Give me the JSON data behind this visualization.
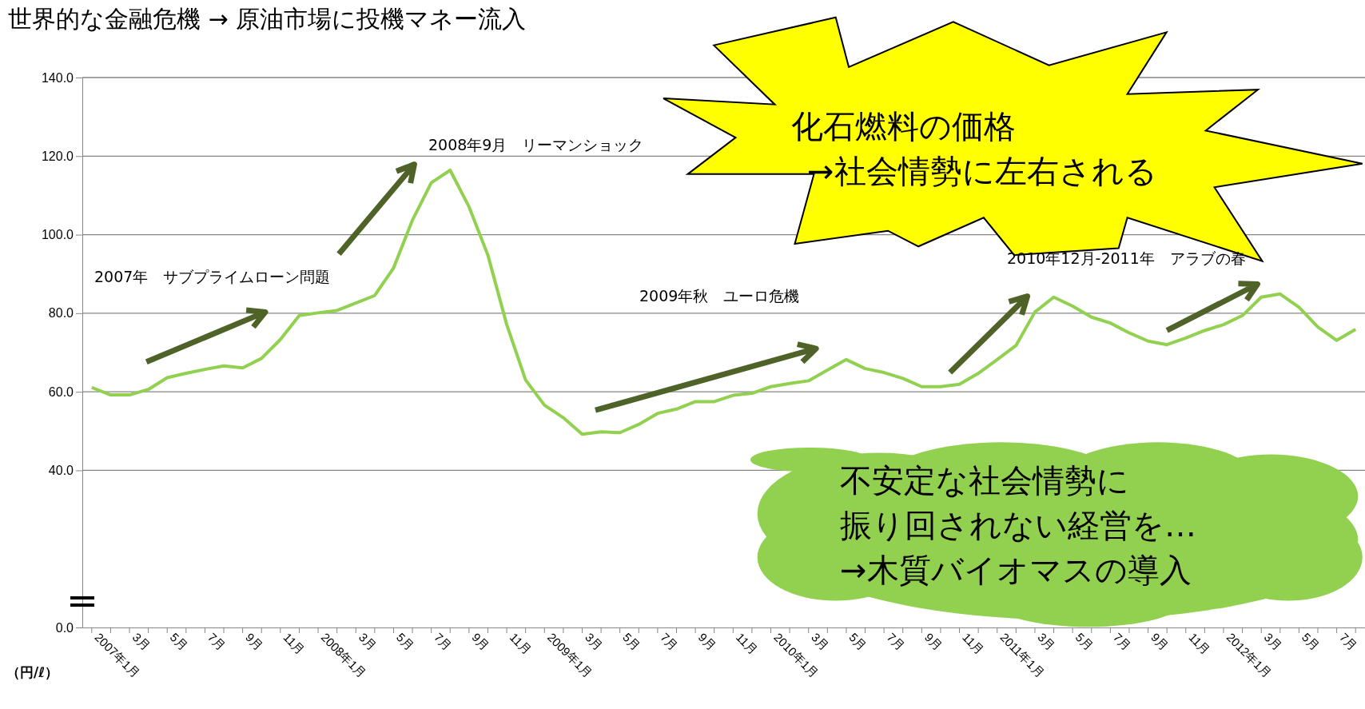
{
  "chart_data": {
    "type": "line",
    "title": "世界的な金融危機 → 原油市場に投機マネー流入",
    "ylabel": "（円/ℓ）",
    "categories": [
      "2007年1月",
      null,
      "3月",
      null,
      "5月",
      null,
      "7月",
      null,
      "9月",
      null,
      "11月",
      null,
      "2008年1月",
      null,
      "3月",
      null,
      "5月",
      null,
      "7月",
      null,
      "9月",
      null,
      "11月",
      null,
      "2009年1月",
      null,
      "3月",
      null,
      "5月",
      null,
      "7月",
      null,
      "9月",
      null,
      "11月",
      null,
      "2010年1月",
      null,
      "3月",
      null,
      "5月",
      null,
      "7月",
      null,
      "9月",
      null,
      "11月",
      null,
      "2011年1月",
      null,
      "3月",
      null,
      "5月",
      null,
      "7月",
      null,
      "9月",
      null,
      "11月",
      null,
      "2012年1月",
      null,
      "3月",
      null,
      "5月",
      null,
      "7月",
      null
    ],
    "series": [
      {
        "color": "#92d050",
        "values": [
          61.1,
          59.2,
          59.2,
          60.6,
          63.6,
          64.7,
          65.7,
          66.6,
          66.1,
          68.5,
          73.3,
          79.4,
          80.1,
          80.7,
          82.6,
          84.5,
          91.5,
          103.7,
          113.2,
          116.4,
          107.1,
          94.8,
          77.1,
          63.0,
          56.6,
          53.4,
          49.2,
          49.8,
          49.6,
          51.7,
          54.5,
          55.6,
          57.5,
          57.5,
          59.1,
          59.6,
          61.3,
          62.1,
          62.8,
          65.5,
          68.2,
          65.9,
          64.9,
          63.4,
          61.3,
          61.3,
          61.9,
          64.7,
          68.2,
          71.8,
          80.3,
          84.1,
          81.8,
          79.0,
          77.5,
          75.0,
          72.9,
          72.0,
          73.7,
          75.6,
          77.1,
          79.4,
          84.1,
          84.9,
          81.5,
          76.5,
          73.1,
          75.9
        ]
      }
    ],
    "ylim": [
      0,
      140
    ],
    "yticks": [
      {
        "value": 0,
        "label": "0.0"
      },
      {
        "value": 40,
        "label": "40.0"
      },
      {
        "value": 60,
        "label": "60.0"
      },
      {
        "value": 80,
        "label": "80.0"
      },
      {
        "value": 100,
        "label": "100.0"
      },
      {
        "value": 120,
        "label": "120.0"
      },
      {
        "value": 140,
        "label": "140.0"
      }
    ],
    "grid": "y",
    "marker": "none",
    "line_style": "solid",
    "annotations": [
      "2007年　サブプライムローン問題",
      "2008年9月　リーマンショック",
      "2009年秋　ユーロ危機",
      "2010年12月-2011年　アラブの春",
      "化石燃料の価格",
      "→社会情勢に左右される",
      "不安定な社会情勢に",
      "振り回されない経営を…",
      "→木質バイオマスの導入"
    ]
  }
}
